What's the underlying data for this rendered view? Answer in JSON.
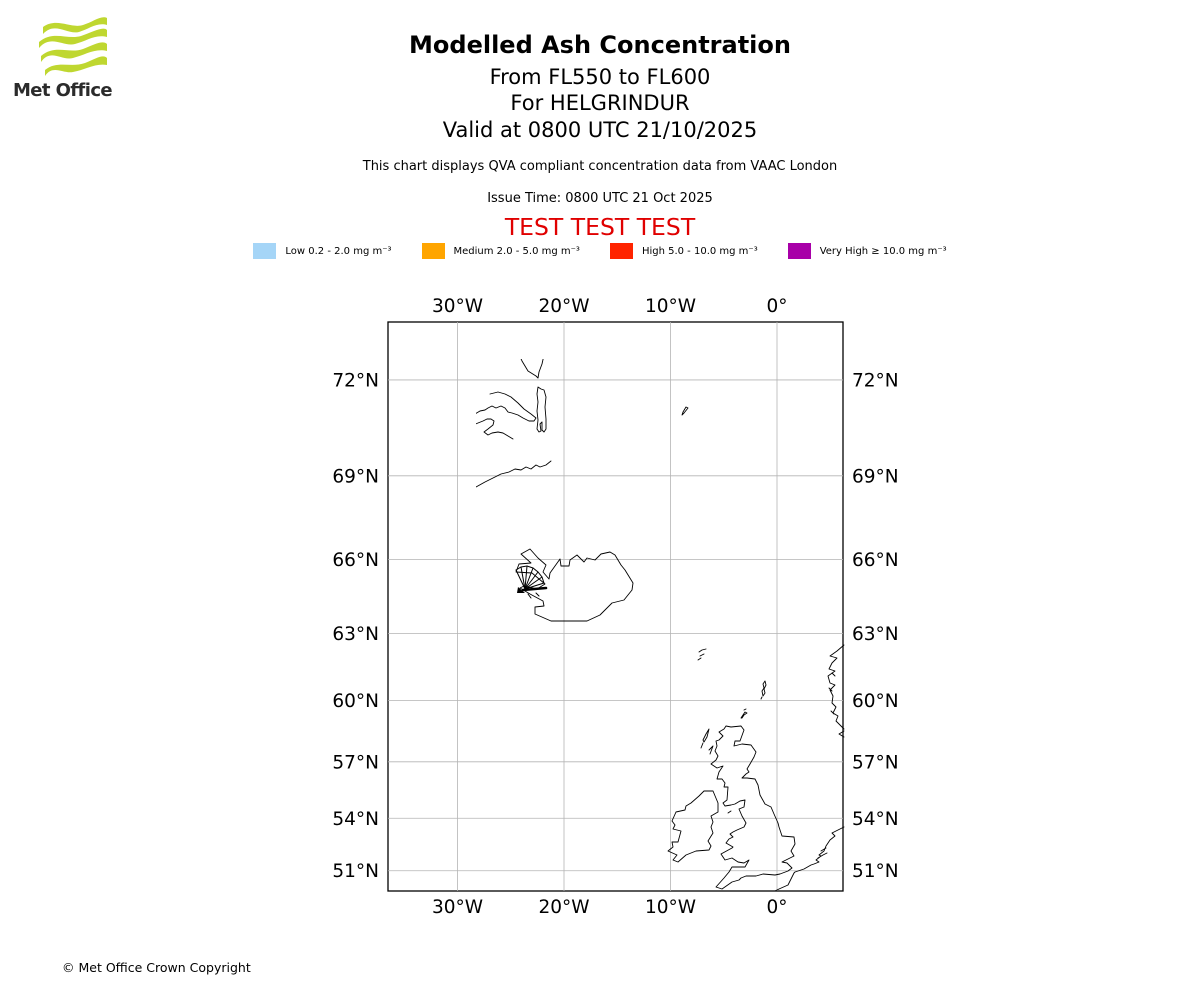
{
  "header": {
    "logo_text": "Met Office",
    "title": "Modelled Ash Concentration",
    "subtitle1": "From FL550 to FL600",
    "subtitle2": "For HELGRINDUR",
    "subtitle3": "Valid at 0800 UTC 21/10/2025",
    "note": "This chart displays QVA compliant concentration data from VAAC London",
    "issue_time": "Issue Time: 0800 UTC 21 Oct 2025",
    "test_banner": "TEST TEST TEST"
  },
  "legend": {
    "items": [
      {
        "label": "Low 0.2 - 2.0 mg m⁻³",
        "color": "#a5d5f7"
      },
      {
        "label": "Medium 2.0 - 5.0 mg m⁻³",
        "color": "#ffa500"
      },
      {
        "label": "High 5.0 - 10.0 mg m⁻³",
        "color": "#ff2400"
      },
      {
        "label": "Very High ≥ 10.0 mg m⁻³",
        "color": "#a800a8"
      }
    ]
  },
  "map": {
    "lon_ticks": [
      {
        "value": -30,
        "label": "30°W"
      },
      {
        "value": -20,
        "label": "20°W"
      },
      {
        "value": -10,
        "label": "10°W"
      },
      {
        "value": 0,
        "label": "0°"
      }
    ],
    "lat_ticks": [
      {
        "value": 72,
        "label": "72°N"
      },
      {
        "value": 69,
        "label": "69°N"
      },
      {
        "value": 66,
        "label": "66°N"
      },
      {
        "value": 63,
        "label": "63°N"
      },
      {
        "value": 60,
        "label": "60°N"
      },
      {
        "value": 57,
        "label": "57°N"
      },
      {
        "value": 54,
        "label": "54°N"
      },
      {
        "value": 51,
        "label": "51°N"
      }
    ],
    "grid_color": "#b4b4b4",
    "coast_color": "#000000",
    "frame_color": "#000000"
  },
  "footer": {
    "copyright": "© Met Office Crown Copyright"
  },
  "colors": {
    "test_red": "#e00000",
    "logo_green": "#bfd730"
  }
}
